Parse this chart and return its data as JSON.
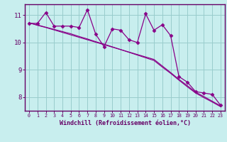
{
  "x": [
    0,
    1,
    2,
    3,
    4,
    5,
    6,
    7,
    8,
    9,
    10,
    11,
    12,
    13,
    14,
    15,
    16,
    17,
    18,
    19,
    20,
    21,
    22,
    23
  ],
  "line_main": [
    10.7,
    10.7,
    11.1,
    10.6,
    10.6,
    10.6,
    10.55,
    11.2,
    10.3,
    9.85,
    10.5,
    10.45,
    10.1,
    10.0,
    11.05,
    10.45,
    10.65,
    10.25,
    8.75,
    8.55,
    8.2,
    8.15,
    8.1,
    7.7
  ],
  "line_reg1": [
    10.72,
    10.63,
    10.55,
    10.46,
    10.37,
    10.28,
    10.19,
    10.1,
    10.01,
    9.92,
    9.83,
    9.74,
    9.65,
    9.56,
    9.47,
    9.38,
    9.14,
    8.9,
    8.65,
    8.42,
    8.18,
    8.02,
    7.85,
    7.68
  ],
  "line_reg2": [
    10.72,
    10.64,
    10.56,
    10.48,
    10.4,
    10.32,
    10.22,
    10.13,
    10.03,
    9.94,
    9.84,
    9.74,
    9.64,
    9.54,
    9.44,
    9.34,
    9.1,
    8.87,
    8.62,
    8.38,
    8.15,
    7.98,
    7.82,
    7.65
  ],
  "line_color": "#880088",
  "bg_color": "#c8eeee",
  "grid_color": "#99cccc",
  "axis_color": "#660066",
  "xlabel": "Windchill (Refroidissement éolien,°C)",
  "ylim": [
    7.5,
    11.4
  ],
  "yticks": [
    8,
    9,
    10,
    11
  ],
  "xticks": [
    0,
    1,
    2,
    3,
    4,
    5,
    6,
    7,
    8,
    9,
    10,
    11,
    12,
    13,
    14,
    15,
    16,
    17,
    18,
    19,
    20,
    21,
    22,
    23
  ]
}
